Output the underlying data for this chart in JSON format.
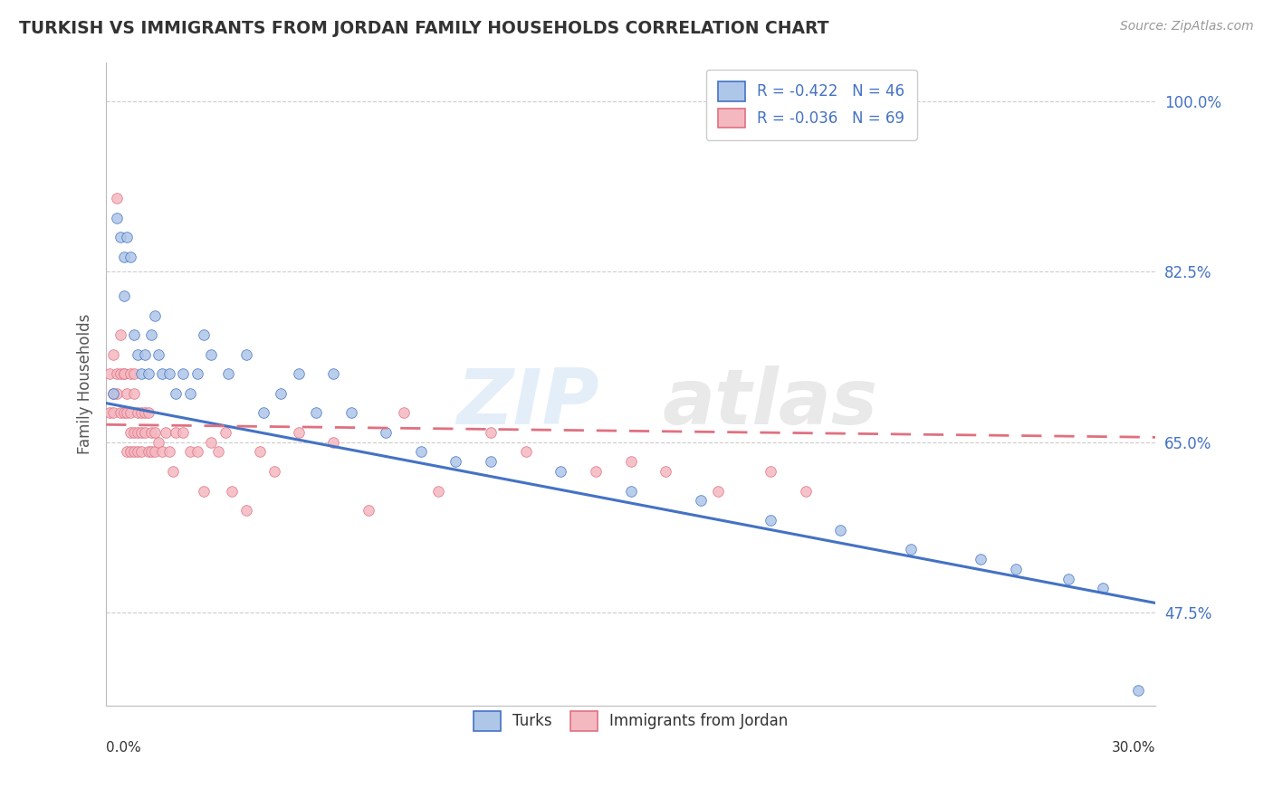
{
  "title": "TURKISH VS IMMIGRANTS FROM JORDAN FAMILY HOUSEHOLDS CORRELATION CHART",
  "source": "Source: ZipAtlas.com",
  "ylabel": "Family Households",
  "yticks": [
    "47.5%",
    "65.0%",
    "82.5%",
    "100.0%"
  ],
  "ytick_values": [
    0.475,
    0.65,
    0.825,
    1.0
  ],
  "xlim": [
    0.0,
    0.3
  ],
  "ylim": [
    0.38,
    1.04
  ],
  "legend1_label": "R = -0.422   N = 46",
  "legend2_label": "R = -0.036   N = 69",
  "turks_color": "#aec6e8",
  "jordan_color": "#f4b8c1",
  "turks_line_color": "#4472c4",
  "jordan_line_color": "#e07080",
  "turks_scatter_x": [
    0.002,
    0.003,
    0.004,
    0.005,
    0.005,
    0.006,
    0.007,
    0.008,
    0.009,
    0.01,
    0.011,
    0.012,
    0.013,
    0.014,
    0.015,
    0.016,
    0.018,
    0.02,
    0.022,
    0.024,
    0.026,
    0.028,
    0.03,
    0.035,
    0.04,
    0.045,
    0.05,
    0.055,
    0.06,
    0.065,
    0.07,
    0.08,
    0.09,
    0.1,
    0.11,
    0.13,
    0.15,
    0.17,
    0.19,
    0.21,
    0.23,
    0.25,
    0.26,
    0.275,
    0.285,
    0.295
  ],
  "turks_scatter_y": [
    0.7,
    0.88,
    0.86,
    0.84,
    0.8,
    0.86,
    0.84,
    0.76,
    0.74,
    0.72,
    0.74,
    0.72,
    0.76,
    0.78,
    0.74,
    0.72,
    0.72,
    0.7,
    0.72,
    0.7,
    0.72,
    0.76,
    0.74,
    0.72,
    0.74,
    0.68,
    0.7,
    0.72,
    0.68,
    0.72,
    0.68,
    0.66,
    0.64,
    0.63,
    0.63,
    0.62,
    0.6,
    0.59,
    0.57,
    0.56,
    0.54,
    0.53,
    0.52,
    0.51,
    0.5,
    0.395
  ],
  "jordan_scatter_x": [
    0.001,
    0.001,
    0.002,
    0.002,
    0.002,
    0.003,
    0.003,
    0.003,
    0.004,
    0.004,
    0.004,
    0.005,
    0.005,
    0.005,
    0.006,
    0.006,
    0.006,
    0.007,
    0.007,
    0.007,
    0.007,
    0.008,
    0.008,
    0.008,
    0.008,
    0.009,
    0.009,
    0.009,
    0.01,
    0.01,
    0.01,
    0.011,
    0.011,
    0.012,
    0.012,
    0.013,
    0.013,
    0.014,
    0.014,
    0.015,
    0.016,
    0.017,
    0.018,
    0.019,
    0.02,
    0.022,
    0.024,
    0.026,
    0.028,
    0.03,
    0.032,
    0.034,
    0.036,
    0.04,
    0.044,
    0.048,
    0.055,
    0.065,
    0.075,
    0.085,
    0.095,
    0.11,
    0.12,
    0.14,
    0.15,
    0.16,
    0.175,
    0.19,
    0.2
  ],
  "jordan_scatter_y": [
    0.68,
    0.72,
    0.7,
    0.68,
    0.74,
    0.9,
    0.72,
    0.7,
    0.76,
    0.72,
    0.68,
    0.72,
    0.68,
    0.72,
    0.7,
    0.68,
    0.64,
    0.72,
    0.68,
    0.66,
    0.64,
    0.72,
    0.7,
    0.66,
    0.64,
    0.68,
    0.66,
    0.64,
    0.68,
    0.66,
    0.64,
    0.68,
    0.66,
    0.68,
    0.64,
    0.66,
    0.64,
    0.66,
    0.64,
    0.65,
    0.64,
    0.66,
    0.64,
    0.62,
    0.66,
    0.66,
    0.64,
    0.64,
    0.6,
    0.65,
    0.64,
    0.66,
    0.6,
    0.58,
    0.64,
    0.62,
    0.66,
    0.65,
    0.58,
    0.68,
    0.6,
    0.66,
    0.64,
    0.62,
    0.63,
    0.62,
    0.6,
    0.62,
    0.6
  ]
}
